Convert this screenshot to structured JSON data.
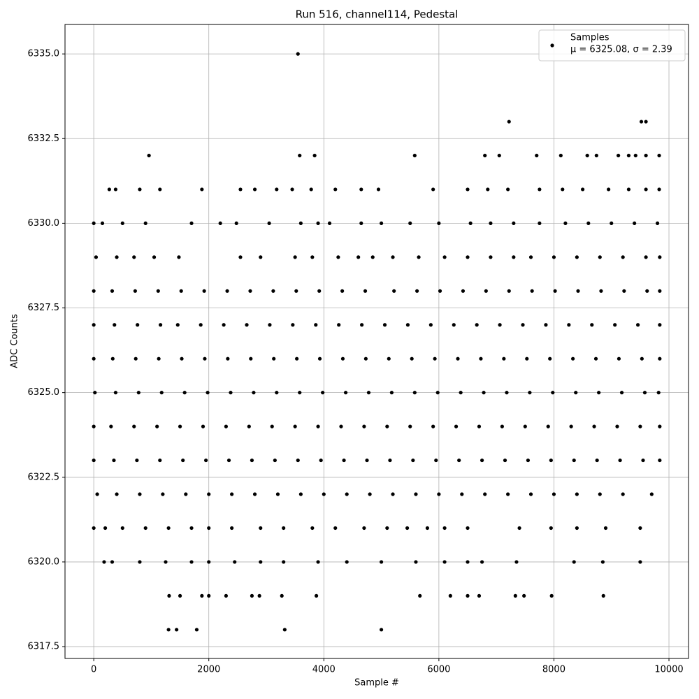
{
  "chart_data": {
    "type": "scatter",
    "title": "Run 516, channel114, Pedestal",
    "xlabel": "Sample #",
    "ylabel": "ADC Counts",
    "xlim": [
      -500,
      10340
    ],
    "ylim": [
      6317.15,
      6335.87
    ],
    "xticks": [
      0,
      2000,
      4000,
      6000,
      8000,
      10000
    ],
    "yticks": [
      6317.5,
      {
        "value": 6320,
        "label": "6320.0"
      },
      6322.5,
      {
        "value": 6325,
        "label": "6325.0"
      },
      6327.5,
      {
        "value": 6330,
        "label": "6330.0"
      },
      6332.5,
      {
        "value": 6335,
        "label": "6335.0"
      }
    ],
    "grid": true,
    "legend": "upper right",
    "legend_note": "μ = 6325.08, σ = 2.39",
    "x": [
      60,
      400,
      800,
      1200,
      1600,
      2000,
      2400,
      2800,
      3200,
      3600,
      4000,
      4400,
      4800,
      5200,
      5600,
      6000,
      6400,
      6800,
      7200,
      7600,
      8000,
      8400,
      8800,
      9200,
      9700,
      0,
      350,
      750,
      1150,
      1550,
      1950,
      2350,
      2750,
      3150,
      3550,
      3950,
      4350,
      4750,
      5150,
      5550,
      5950,
      6350,
      6750,
      7150,
      7550,
      7950,
      8350,
      8750,
      9150,
      9550,
      9840,
      0,
      300,
      700,
      1100,
      1500,
      1900,
      2300,
      2700,
      3100,
      3500,
      3900,
      4300,
      4700,
      5100,
      5500,
      5900,
      6300,
      6700,
      7100,
      7500,
      7900,
      8300,
      8700,
      9100,
      9500,
      9840,
      20,
      380,
      780,
      1180,
      1580,
      1980,
      2380,
      2780,
      3180,
      3580,
      3980,
      4380,
      4780,
      5180,
      5580,
      5980,
      6380,
      6780,
      7180,
      7580,
      7980,
      8380,
      8780,
      9180,
      9580,
      9820,
      0,
      330,
      730,
      1130,
      1530,
      1930,
      2330,
      2730,
      3130,
      3530,
      3930,
      4330,
      4730,
      5130,
      5530,
      5930,
      6330,
      6730,
      7130,
      7530,
      7930,
      8330,
      8730,
      9130,
      9530,
      9840,
      0,
      360,
      760,
      1160,
      1460,
      1860,
      2260,
      2660,
      3060,
      3460,
      3860,
      4260,
      4660,
      5060,
      5460,
      5860,
      6260,
      6660,
      7060,
      7460,
      7860,
      8260,
      8660,
      9060,
      9460,
      9840,
      0,
      320,
      720,
      1120,
      1520,
      1920,
      2320,
      2720,
      3120,
      3520,
      3920,
      4320,
      4720,
      5220,
      5620,
      6020,
      6420,
      6820,
      7220,
      7620,
      8020,
      8420,
      8820,
      9220,
      9620,
      9840,
      40,
      400,
      700,
      1050,
      1480,
      2550,
      2900,
      3500,
      3800,
      4250,
      4600,
      4850,
      5200,
      5650,
      6100,
      6500,
      6900,
      7300,
      7600,
      8000,
      8400,
      8800,
      9200,
      9600,
      9840,
      0,
      150,
      500,
      900,
      1700,
      2200,
      2480,
      3050,
      3600,
      3900,
      4100,
      4650,
      5000,
      5500,
      6000,
      6550,
      6900,
      7300,
      7750,
      8200,
      8600,
      9000,
      9400,
      9800,
      270,
      380,
      800,
      1150,
      1880,
      2550,
      2800,
      3180,
      3450,
      3780,
      4200,
      4650,
      4950,
      5900,
      6500,
      6850,
      7200,
      7750,
      8150,
      8500,
      8950,
      9300,
      9600,
      9830,
      960,
      3580,
      3840,
      5580,
      6800,
      7050,
      7700,
      8120,
      8580,
      8740,
      9120,
      9300,
      9420,
      9600,
      9830,
      7220,
      9520,
      9600,
      3550,
      0,
      200,
      500,
      900,
      1300,
      1700,
      2000,
      2400,
      2900,
      3300,
      3800,
      4200,
      4700,
      5100,
      5450,
      5800,
      6100,
      6500,
      7400,
      7950,
      8400,
      8900,
      9500,
      180,
      320,
      800,
      1250,
      1700,
      2000,
      2450,
      2900,
      3300,
      3900,
      4400,
      5000,
      5600,
      6100,
      6500,
      6750,
      7350,
      8350,
      8850,
      9500,
      1310,
      1500,
      1880,
      2000,
      2300,
      2750,
      2880,
      3270,
      3870,
      5670,
      6200,
      6500,
      6700,
      7330,
      7480,
      7960,
      8860,
      1300,
      1440,
      1790,
      3320,
      5000
    ],
    "series": [
      {
        "name": "Samples",
        "color": "#000000",
        "values": [
          6322,
          6322,
          6322,
          6322,
          6322,
          6322,
          6322,
          6322,
          6322,
          6322,
          6322,
          6322,
          6322,
          6322,
          6322,
          6322,
          6322,
          6322,
          6322,
          6322,
          6322,
          6322,
          6322,
          6322,
          6322,
          6323,
          6323,
          6323,
          6323,
          6323,
          6323,
          6323,
          6323,
          6323,
          6323,
          6323,
          6323,
          6323,
          6323,
          6323,
          6323,
          6323,
          6323,
          6323,
          6323,
          6323,
          6323,
          6323,
          6323,
          6323,
          6323,
          6324,
          6324,
          6324,
          6324,
          6324,
          6324,
          6324,
          6324,
          6324,
          6324,
          6324,
          6324,
          6324,
          6324,
          6324,
          6324,
          6324,
          6324,
          6324,
          6324,
          6324,
          6324,
          6324,
          6324,
          6324,
          6324,
          6325,
          6325,
          6325,
          6325,
          6325,
          6325,
          6325,
          6325,
          6325,
          6325,
          6325,
          6325,
          6325,
          6325,
          6325,
          6325,
          6325,
          6325,
          6325,
          6325,
          6325,
          6325,
          6325,
          6325,
          6325,
          6325,
          6326,
          6326,
          6326,
          6326,
          6326,
          6326,
          6326,
          6326,
          6326,
          6326,
          6326,
          6326,
          6326,
          6326,
          6326,
          6326,
          6326,
          6326,
          6326,
          6326,
          6326,
          6326,
          6326,
          6326,
          6326,
          6326,
          6327,
          6327,
          6327,
          6327,
          6327,
          6327,
          6327,
          6327,
          6327,
          6327,
          6327,
          6327,
          6327,
          6327,
          6327,
          6327,
          6327,
          6327,
          6327,
          6327,
          6327,
          6327,
          6327,
          6327,
          6327,
          6327,
          6328,
          6328,
          6328,
          6328,
          6328,
          6328,
          6328,
          6328,
          6328,
          6328,
          6328,
          6328,
          6328,
          6328,
          6328,
          6328,
          6328,
          6328,
          6328,
          6328,
          6328,
          6328,
          6328,
          6328,
          6328,
          6328,
          6329,
          6329,
          6329,
          6329,
          6329,
          6329,
          6329,
          6329,
          6329,
          6329,
          6329,
          6329,
          6329,
          6329,
          6329,
          6329,
          6329,
          6329,
          6329,
          6329,
          6329,
          6329,
          6329,
          6329,
          6329,
          6330,
          6330,
          6330,
          6330,
          6330,
          6330,
          6330,
          6330,
          6330,
          6330,
          6330,
          6330,
          6330,
          6330,
          6330,
          6330,
          6330,
          6330,
          6330,
          6330,
          6330,
          6330,
          6330,
          6330,
          6331,
          6331,
          6331,
          6331,
          6331,
          6331,
          6331,
          6331,
          6331,
          6331,
          6331,
          6331,
          6331,
          6331,
          6331,
          6331,
          6331,
          6331,
          6331,
          6331,
          6331,
          6331,
          6331,
          6331,
          6332,
          6332,
          6332,
          6332,
          6332,
          6332,
          6332,
          6332,
          6332,
          6332,
          6332,
          6332,
          6332,
          6332,
          6332,
          6333,
          6333,
          6333,
          6335,
          6321,
          6321,
          6321,
          6321,
          6321,
          6321,
          6321,
          6321,
          6321,
          6321,
          6321,
          6321,
          6321,
          6321,
          6321,
          6321,
          6321,
          6321,
          6321,
          6321,
          6321,
          6321,
          6321,
          6320,
          6320,
          6320,
          6320,
          6320,
          6320,
          6320,
          6320,
          6320,
          6320,
          6320,
          6320,
          6320,
          6320,
          6320,
          6320,
          6320,
          6320,
          6320,
          6320,
          6319,
          6319,
          6319,
          6319,
          6319,
          6319,
          6319,
          6319,
          6319,
          6319,
          6319,
          6319,
          6319,
          6319,
          6319,
          6319,
          6319,
          6318,
          6318,
          6318,
          6318,
          6318
        ]
      }
    ]
  }
}
